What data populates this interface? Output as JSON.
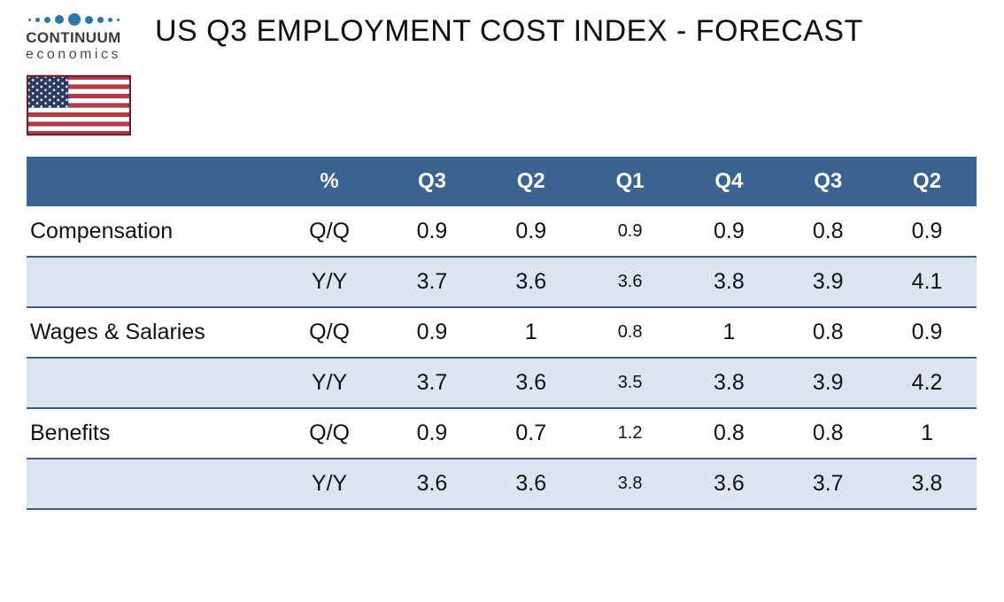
{
  "brand": {
    "name_top": "CONTINUUM",
    "name_bottom": "economics"
  },
  "title": "US Q3 EMPLOYMENT COST INDEX - FORECAST",
  "flag": {
    "country": "United States"
  },
  "table": {
    "header": [
      "",
      "%",
      "Q3",
      "Q2",
      "Q1",
      "Q4",
      "Q3",
      "Q2"
    ],
    "rows": [
      {
        "label": "Compensation",
        "measure": "Q/Q",
        "values": [
          "0.9",
          "0.9",
          "0.9",
          "0.9",
          "0.8",
          "0.9"
        ],
        "shaded": false
      },
      {
        "label": "",
        "measure": "Y/Y",
        "values": [
          "3.7",
          "3.6",
          "3.6",
          "3.8",
          "3.9",
          "4.1"
        ],
        "shaded": true
      },
      {
        "label": "Wages & Salaries",
        "measure": "Q/Q",
        "values": [
          "0.9",
          "1",
          "0.8",
          "1",
          "0.8",
          "0.9"
        ],
        "shaded": false
      },
      {
        "label": "",
        "measure": "Y/Y",
        "values": [
          "3.7",
          "3.6",
          "3.5",
          "3.8",
          "3.9",
          "4.2"
        ],
        "shaded": true
      },
      {
        "label": "Benefits",
        "measure": "Q/Q",
        "values": [
          "0.9",
          "0.7",
          "1.2",
          "0.8",
          "0.8",
          "1"
        ],
        "shaded": false
      },
      {
        "label": "",
        "measure": "Y/Y",
        "values": [
          "3.6",
          "3.6",
          "3.8",
          "3.6",
          "3.7",
          "3.8"
        ],
        "shaded": true
      }
    ]
  },
  "chart_data": {
    "type": "table",
    "title": "US Q3 EMPLOYMENT COST INDEX - FORECAST",
    "columns": [
      "%",
      "Q3",
      "Q2",
      "Q1",
      "Q4",
      "Q3",
      "Q2"
    ],
    "rows": [
      {
        "category": "Compensation",
        "measure": "Q/Q",
        "values": [
          0.9,
          0.9,
          0.9,
          0.9,
          0.8,
          0.9
        ]
      },
      {
        "category": "Compensation",
        "measure": "Y/Y",
        "values": [
          3.7,
          3.6,
          3.6,
          3.8,
          3.9,
          4.1
        ]
      },
      {
        "category": "Wages & Salaries",
        "measure": "Q/Q",
        "values": [
          0.9,
          1,
          0.8,
          1,
          0.8,
          0.9
        ]
      },
      {
        "category": "Wages & Salaries",
        "measure": "Y/Y",
        "values": [
          3.7,
          3.6,
          3.5,
          3.8,
          3.9,
          4.2
        ]
      },
      {
        "category": "Benefits",
        "measure": "Q/Q",
        "values": [
          0.9,
          0.7,
          1.2,
          0.8,
          0.8,
          1
        ]
      },
      {
        "category": "Benefits",
        "measure": "Y/Y",
        "values": [
          3.6,
          3.6,
          3.8,
          3.6,
          3.7,
          3.8
        ]
      }
    ]
  },
  "colors": {
    "header_bg": "#3A648F",
    "shaded_row": "#DCE5F1",
    "line": "#3E5C88",
    "logo_blue": "#2E76A5",
    "flag_red": "#A93F49",
    "flag_navy": "#2B3A64",
    "flag_border": "#701C24"
  }
}
